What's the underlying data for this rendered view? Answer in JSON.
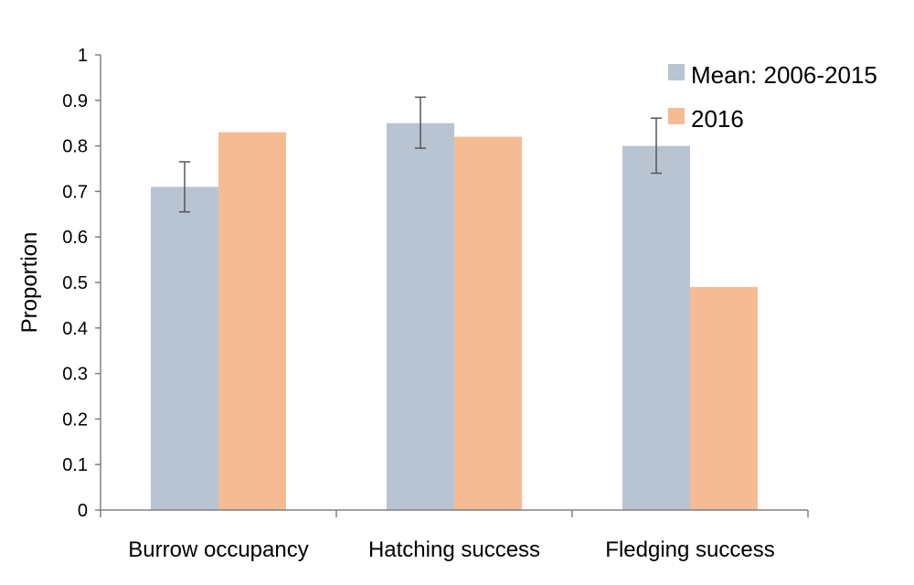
{
  "chart_data": {
    "type": "bar",
    "categories": [
      "Burrow occupancy",
      "Hatching success",
      "Fledging success"
    ],
    "series": [
      {
        "name": "Mean: 2006-2015",
        "color": "#b9c4d3",
        "values": [
          0.71,
          0.85,
          0.8
        ],
        "error": [
          [
            0.655,
            0.765
          ],
          [
            0.795,
            0.907
          ],
          [
            0.74,
            0.861
          ]
        ]
      },
      {
        "name": "2016",
        "color": "#f5bc94",
        "values": [
          0.83,
          0.82,
          0.49
        ]
      }
    ],
    "ylabel": "Proportion",
    "ylim": [
      0,
      1
    ],
    "yticks": [
      "0",
      "0.1",
      "0.2",
      "0.3",
      "0.4",
      "0.5",
      "0.6",
      "0.7",
      "0.8",
      "0.9",
      "1"
    ],
    "grid": false,
    "legend_position": "top-right"
  }
}
